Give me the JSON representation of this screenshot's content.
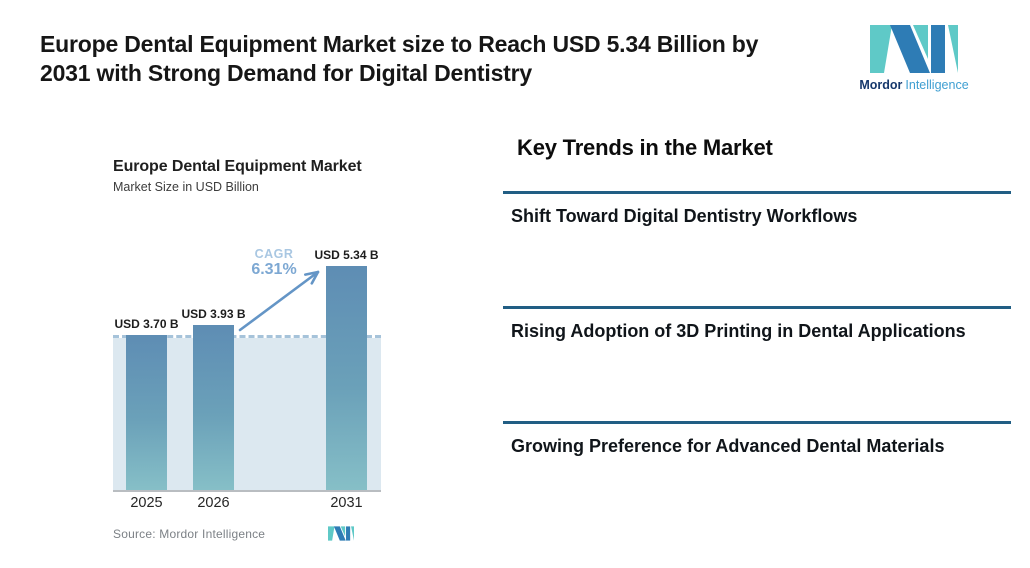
{
  "header": {
    "title_line1": "Europe Dental Equipment Market size to Reach USD 5.34 Billion by",
    "title_line2": "2031 with Strong Demand for Digital Dentistry"
  },
  "brand": {
    "name_bold": "Mordor",
    "name_light": "Intelligence",
    "logo_blue": "#2e7cb5",
    "logo_teal": "#5fc9c7",
    "text_navy": "#16386c",
    "text_light_blue": "#3f9fd2"
  },
  "chart": {
    "title": "Europe Dental Equipment Market",
    "subtitle": "Market Size in USD Billion",
    "cagr_label": "CAGR",
    "cagr_value": "6.31%",
    "source_label": "Source: Mordor Intelligence"
  },
  "chart_data": {
    "type": "bar",
    "title": "Europe Dental Equipment Market",
    "ylabel": "Market Size in USD Billion",
    "categories": [
      "2025",
      "2026",
      "2031"
    ],
    "values": [
      3.7,
      3.93,
      5.34
    ],
    "value_labels": [
      "USD 3.70 B",
      "USD 3.93 B",
      "USD 5.34 B"
    ],
    "cagr_percent": 6.31,
    "reference_line": 3.7,
    "ylim": [
      0,
      5.97
    ],
    "grid": false,
    "legend": "none",
    "bar_color_top": "#5e8db4",
    "bar_color_bottom": "#86bfc7",
    "band_color": "#dce8f0",
    "dashed_line_color": "#a6c3da",
    "arrow_color": "#6495c6"
  },
  "trends": {
    "heading": "Key Trends in the Market",
    "divider_color": "#215e84",
    "items": [
      {
        "label": "Shift Toward Digital Dentistry Workflows"
      },
      {
        "label": "Rising Adoption of 3D Printing in Dental Applications"
      },
      {
        "label": "Growing Preference for Advanced Dental Materials"
      }
    ]
  }
}
